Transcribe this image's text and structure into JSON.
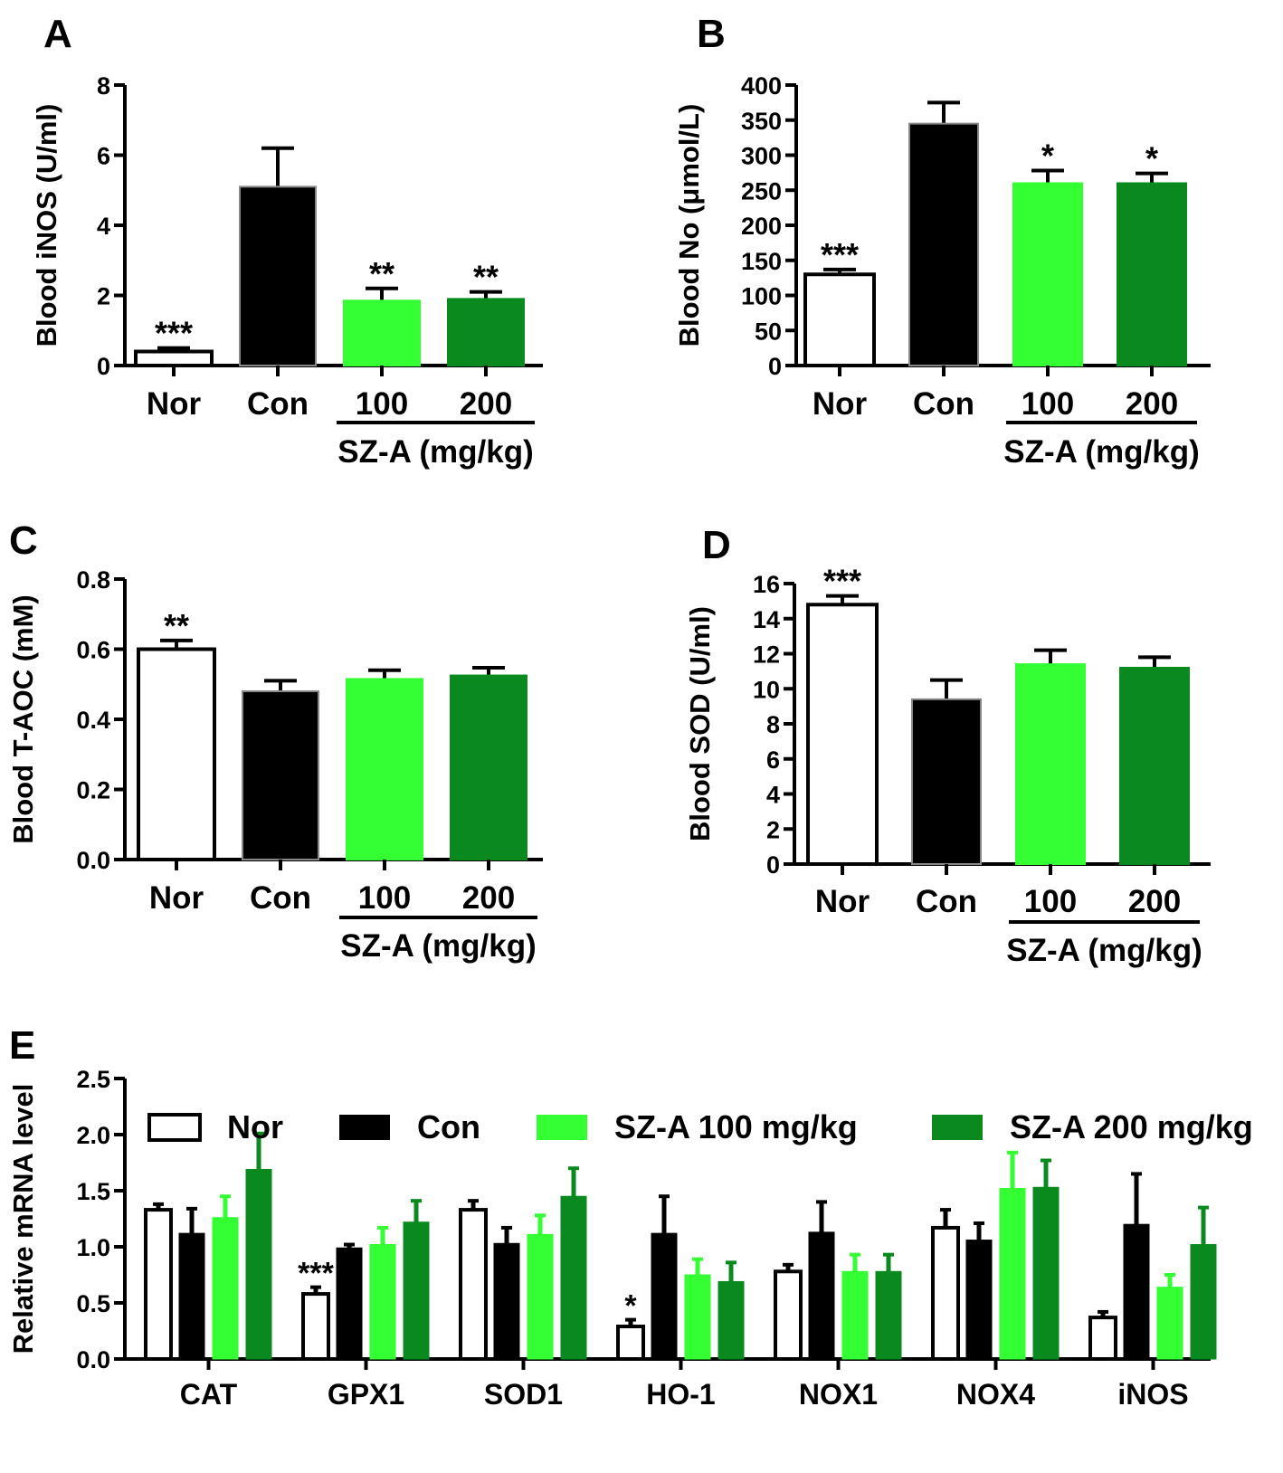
{
  "chart_data": [
    {
      "panel": "A",
      "type": "bar",
      "ylabel": "Blood iNOS (U/ml)",
      "ylim": [
        0,
        8
      ],
      "yticks": [
        0,
        2,
        4,
        6,
        8
      ],
      "tick_decimals": 0,
      "categories": [
        "Nor",
        "Con",
        "100",
        "200"
      ],
      "group_label": "SZ-A (mg/kg)",
      "values": [
        0.4,
        5.1,
        1.85,
        1.9
      ],
      "errors": [
        0.1,
        1.1,
        0.35,
        0.2
      ],
      "significance": [
        "***",
        "",
        "**",
        "**"
      ],
      "colors": [
        "#ffffff",
        "#000000",
        "#33ff33",
        "#0a8a1e"
      ]
    },
    {
      "panel": "B",
      "type": "bar",
      "ylabel": "Blood No (μmol/L)",
      "ylim": [
        0,
        400
      ],
      "yticks": [
        0,
        50,
        100,
        150,
        200,
        250,
        300,
        350,
        400
      ],
      "tick_decimals": 0,
      "categories": [
        "Nor",
        "Con",
        "100",
        "200"
      ],
      "group_label": "SZ-A (mg/kg)",
      "values": [
        130,
        345,
        260,
        260
      ],
      "errors": [
        7,
        30,
        18,
        14
      ],
      "significance": [
        "***",
        "",
        "*",
        "*"
      ],
      "colors": [
        "#ffffff",
        "#000000",
        "#33ff33",
        "#0a8a1e"
      ]
    },
    {
      "panel": "C",
      "type": "bar",
      "ylabel": "Blood T-AOC (mM)",
      "ylim": [
        0,
        0.8
      ],
      "yticks": [
        0,
        0.2,
        0.4,
        0.6,
        0.8
      ],
      "tick_decimals": 1,
      "categories": [
        "Nor",
        "Con",
        "100",
        "200"
      ],
      "group_label": "SZ-A (mg/kg)",
      "values": [
        0.6,
        0.48,
        0.515,
        0.525
      ],
      "errors": [
        0.025,
        0.03,
        0.025,
        0.022
      ],
      "significance": [
        "**",
        "",
        "",
        ""
      ],
      "colors": [
        "#ffffff",
        "#000000",
        "#33ff33",
        "#0a8a1e"
      ]
    },
    {
      "panel": "D",
      "type": "bar",
      "ylabel": "Blood SOD (U/ml)",
      "ylim": [
        0,
        16
      ],
      "yticks": [
        0,
        2,
        4,
        6,
        8,
        10,
        12,
        14,
        16
      ],
      "tick_decimals": 0,
      "categories": [
        "Nor",
        "Con",
        "100",
        "200"
      ],
      "group_label": "SZ-A (mg/kg)",
      "values": [
        14.8,
        9.4,
        11.4,
        11.2
      ],
      "errors": [
        0.5,
        1.1,
        0.8,
        0.6
      ],
      "significance": [
        "***",
        "",
        "",
        ""
      ],
      "colors": [
        "#ffffff",
        "#000000",
        "#33ff33",
        "#0a8a1e"
      ]
    },
    {
      "panel": "E",
      "type": "bar",
      "ylabel": "Relative mRNA level",
      "ylim": [
        0,
        2.5
      ],
      "yticks": [
        0,
        0.5,
        1.0,
        1.5,
        2.0,
        2.5
      ],
      "tick_decimals": 1,
      "categories": [
        "CAT",
        "GPX1",
        "SOD1",
        "HO-1",
        "NOX1",
        "NOX4",
        "iNOS"
      ],
      "series": [
        {
          "name": "Nor",
          "color": "#ffffff",
          "values": [
            1.33,
            0.58,
            1.33,
            0.29,
            0.78,
            1.17,
            0.37
          ],
          "errors": [
            0.05,
            0.06,
            0.08,
            0.06,
            0.06,
            0.16,
            0.05
          ],
          "significance": [
            "",
            "***",
            "",
            "*",
            "",
            "",
            ""
          ]
        },
        {
          "name": "Con",
          "color": "#000000",
          "values": [
            1.12,
            0.99,
            1.03,
            1.12,
            1.13,
            1.06,
            1.2
          ],
          "errors": [
            0.22,
            0.03,
            0.14,
            0.33,
            0.27,
            0.15,
            0.45
          ]
        },
        {
          "name": "SZ-A 100 mg/kg",
          "color": "#33ff33",
          "values": [
            1.26,
            1.02,
            1.11,
            0.75,
            0.78,
            1.52,
            0.64
          ],
          "errors": [
            0.19,
            0.15,
            0.17,
            0.14,
            0.15,
            0.32,
            0.11
          ]
        },
        {
          "name": "SZ-A 200 mg/kg",
          "color": "#0a8a1e",
          "values": [
            1.69,
            1.22,
            1.45,
            0.69,
            0.78,
            1.53,
            1.02
          ],
          "errors": [
            0.32,
            0.19,
            0.25,
            0.17,
            0.15,
            0.24,
            0.33
          ]
        }
      ]
    }
  ]
}
